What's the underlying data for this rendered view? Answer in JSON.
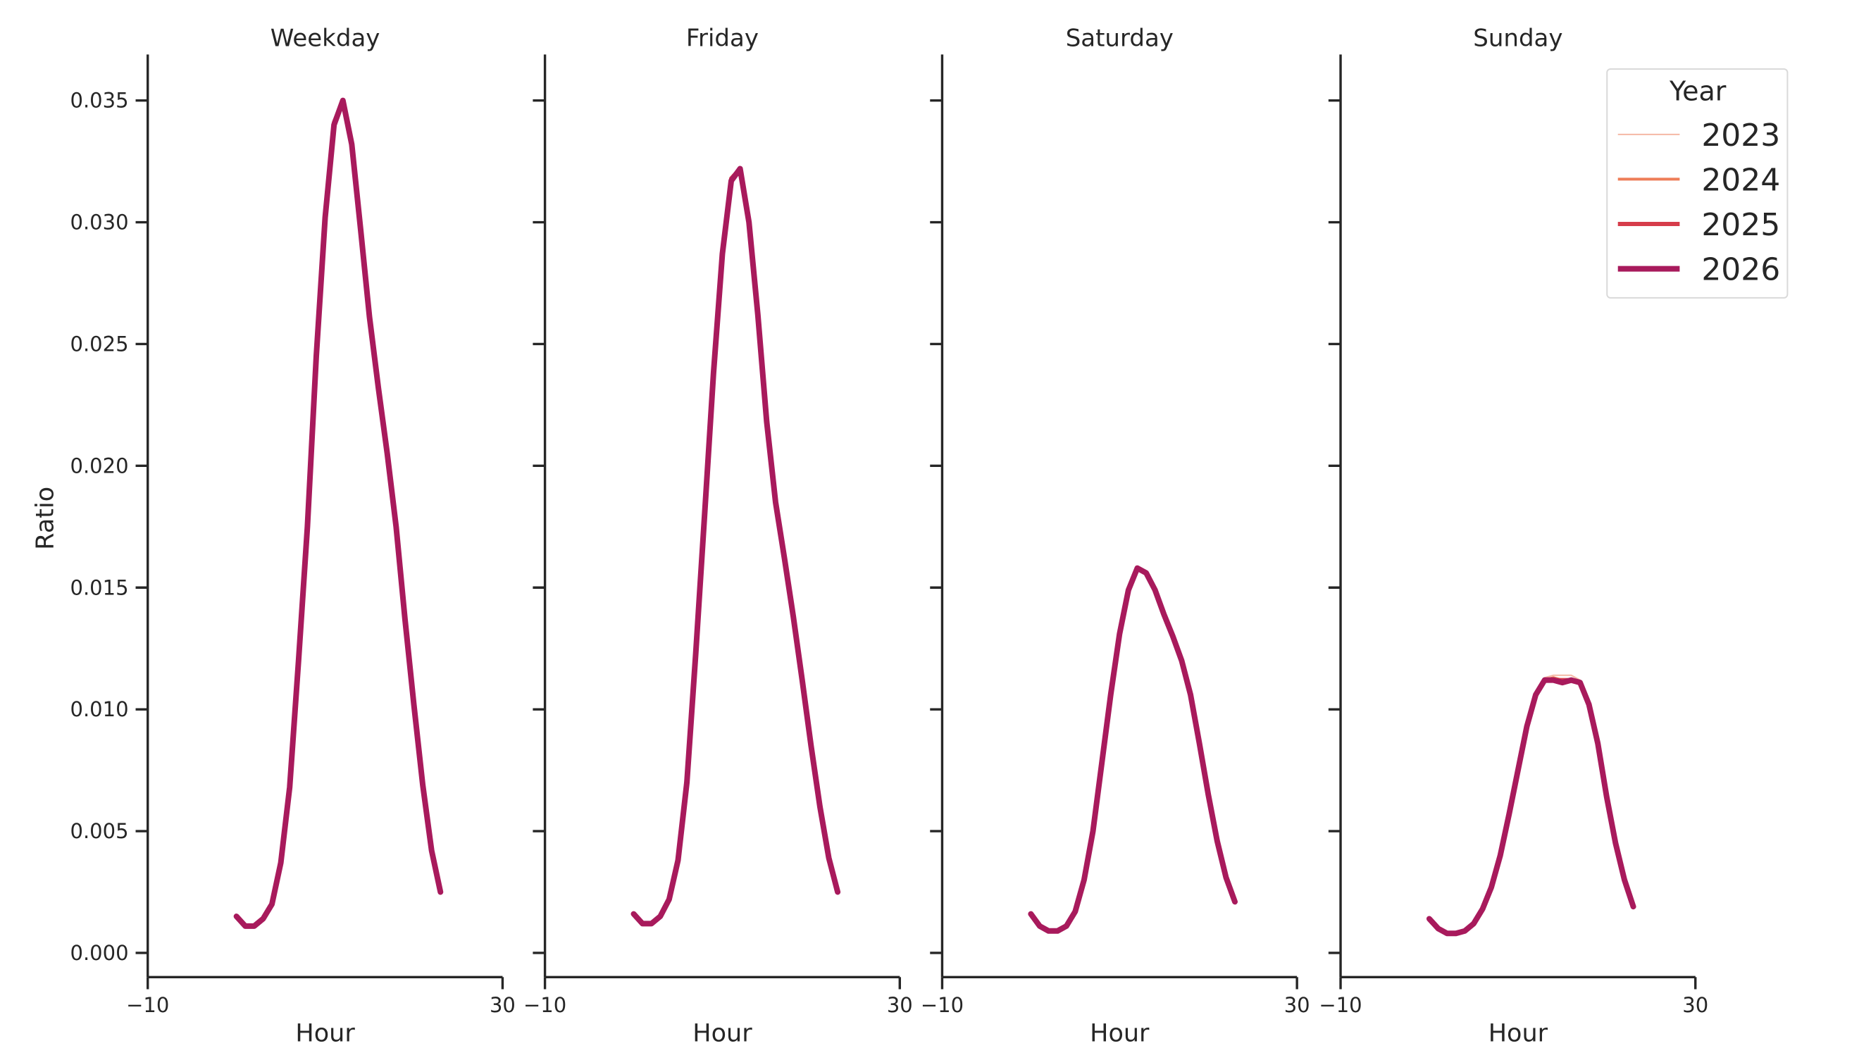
{
  "chart_data": {
    "type": "line",
    "facet_by": "day_type",
    "shared_y_axis": true,
    "ylabel": "Ratio",
    "xlabel": "Hour",
    "xlim": [
      -10,
      30
    ],
    "ylim": [
      -0.001,
      0.037
    ],
    "xticks": [
      -10,
      30
    ],
    "xtick_labels": [
      "−10",
      "30"
    ],
    "yticks": [
      0.0,
      0.005,
      0.01,
      0.015,
      0.02,
      0.025,
      0.03,
      0.035
    ],
    "ytick_labels": [
      "0.000",
      "0.005",
      "0.010",
      "0.015",
      "0.020",
      "0.025",
      "0.030",
      "0.035"
    ],
    "grid": false,
    "legend": {
      "title": "Year",
      "placement": "top-right",
      "entries": [
        {
          "label": "2023",
          "color": "#f5b8a5",
          "width": 2
        },
        {
          "label": "2024",
          "color": "#ee7d58",
          "width": 4
        },
        {
          "label": "2025",
          "color": "#d63c4a",
          "width": 6
        },
        {
          "label": "2026",
          "color": "#a81a5c",
          "width": 8
        }
      ]
    },
    "x": [
      0,
      1,
      2,
      3,
      4,
      5,
      6,
      7,
      8,
      9,
      10,
      11,
      12,
      13,
      14,
      15,
      16,
      17,
      18,
      19,
      20,
      21,
      22,
      23
    ],
    "panels": [
      {
        "title": "Weekday",
        "series": [
          {
            "name": "2023",
            "values": [
              0.0015,
              0.0011,
              0.0011,
              0.0014,
              0.002,
              0.0037,
              0.0068,
              0.012,
              0.0175,
              0.0245,
              0.0302,
              0.0341,
              0.035,
              0.0332,
              0.0297,
              0.0261,
              0.0232,
              0.0205,
              0.0175,
              0.0137,
              0.0102,
              0.0069,
              0.0042,
              0.0025
            ]
          },
          {
            "name": "2024",
            "values": [
              0.0015,
              0.0011,
              0.0011,
              0.0014,
              0.002,
              0.0037,
              0.0068,
              0.012,
              0.0175,
              0.0245,
              0.0302,
              0.0341,
              0.035,
              0.0332,
              0.0297,
              0.0261,
              0.0232,
              0.0205,
              0.0175,
              0.0137,
              0.0102,
              0.0069,
              0.0042,
              0.0025
            ]
          },
          {
            "name": "2025",
            "values": [
              0.0015,
              0.0011,
              0.0011,
              0.0014,
              0.002,
              0.0037,
              0.0068,
              0.012,
              0.0175,
              0.0245,
              0.0302,
              0.0341,
              0.035,
              0.0332,
              0.0297,
              0.0261,
              0.0232,
              0.0205,
              0.0175,
              0.0137,
              0.0102,
              0.0069,
              0.0042,
              0.0025
            ]
          },
          {
            "name": "2026",
            "values": [
              0.0015,
              0.0011,
              0.0011,
              0.0014,
              0.002,
              0.0037,
              0.0068,
              0.012,
              0.0175,
              0.0245,
              0.0302,
              0.034,
              0.035,
              0.0332,
              0.0297,
              0.0261,
              0.0232,
              0.0205,
              0.0175,
              0.0137,
              0.0102,
              0.0069,
              0.0042,
              0.0025
            ]
          }
        ]
      },
      {
        "title": "Friday",
        "series": [
          {
            "name": "2023",
            "values": [
              0.0016,
              0.0012,
              0.0012,
              0.0015,
              0.0022,
              0.0038,
              0.007,
              0.0123,
              0.018,
              0.0238,
              0.0287,
              0.0318,
              0.0322,
              0.03,
              0.0262,
              0.0218,
              0.0185,
              0.0162,
              0.0138,
              0.0112,
              0.0085,
              0.006,
              0.0039,
              0.0025
            ]
          },
          {
            "name": "2024",
            "values": [
              0.0016,
              0.0012,
              0.0012,
              0.0015,
              0.0022,
              0.0038,
              0.007,
              0.0123,
              0.018,
              0.0238,
              0.0287,
              0.0318,
              0.0322,
              0.03,
              0.0262,
              0.0218,
              0.0185,
              0.0162,
              0.0138,
              0.0112,
              0.0085,
              0.006,
              0.0039,
              0.0025
            ]
          },
          {
            "name": "2025",
            "values": [
              0.0016,
              0.0012,
              0.0012,
              0.0015,
              0.0022,
              0.0038,
              0.007,
              0.0123,
              0.018,
              0.0238,
              0.0287,
              0.0318,
              0.0322,
              0.03,
              0.0262,
              0.0218,
              0.0185,
              0.0162,
              0.0138,
              0.0112,
              0.0085,
              0.006,
              0.0039,
              0.0025
            ]
          },
          {
            "name": "2026",
            "values": [
              0.0016,
              0.0012,
              0.0012,
              0.0015,
              0.0022,
              0.0038,
              0.007,
              0.0123,
              0.018,
              0.0238,
              0.0287,
              0.0317,
              0.0322,
              0.03,
              0.0262,
              0.0218,
              0.0185,
              0.0162,
              0.0138,
              0.0112,
              0.0085,
              0.006,
              0.0039,
              0.0025
            ]
          }
        ]
      },
      {
        "title": "Saturday",
        "series": [
          {
            "name": "2023",
            "values": [
              0.0016,
              0.0011,
              0.0009,
              0.0009,
              0.0011,
              0.0017,
              0.003,
              0.005,
              0.0078,
              0.0106,
              0.0131,
              0.0149,
              0.0158,
              0.0156,
              0.0149,
              0.0139,
              0.013,
              0.012,
              0.0106,
              0.0086,
              0.0065,
              0.0046,
              0.0031,
              0.0021
            ]
          },
          {
            "name": "2024",
            "values": [
              0.0016,
              0.0011,
              0.0009,
              0.0009,
              0.0011,
              0.0017,
              0.003,
              0.005,
              0.0078,
              0.0106,
              0.0131,
              0.0149,
              0.0158,
              0.0156,
              0.0149,
              0.0139,
              0.013,
              0.012,
              0.0106,
              0.0086,
              0.0065,
              0.0046,
              0.0031,
              0.0021
            ]
          },
          {
            "name": "2025",
            "values": [
              0.0016,
              0.0011,
              0.0009,
              0.0009,
              0.0011,
              0.0017,
              0.003,
              0.005,
              0.0078,
              0.0106,
              0.0131,
              0.0149,
              0.0158,
              0.0156,
              0.0149,
              0.0139,
              0.013,
              0.012,
              0.0106,
              0.0086,
              0.0065,
              0.0046,
              0.0031,
              0.0021
            ]
          },
          {
            "name": "2026",
            "values": [
              0.0016,
              0.0011,
              0.0009,
              0.0009,
              0.0011,
              0.0017,
              0.003,
              0.005,
              0.0078,
              0.0106,
              0.0131,
              0.0149,
              0.0158,
              0.0156,
              0.0149,
              0.0139,
              0.013,
              0.012,
              0.0106,
              0.0086,
              0.0065,
              0.0046,
              0.0031,
              0.0021
            ]
          }
        ]
      },
      {
        "title": "Sunday",
        "series": [
          {
            "name": "2023",
            "values": [
              0.0014,
              0.001,
              0.0008,
              0.0008,
              0.0009,
              0.0012,
              0.0018,
              0.0027,
              0.004,
              0.0057,
              0.0075,
              0.0093,
              0.0106,
              0.0113,
              0.0114,
              0.0114,
              0.0114,
              0.0112,
              0.0103,
              0.0086,
              0.0064,
              0.0045,
              0.003,
              0.0019
            ]
          },
          {
            "name": "2024",
            "values": [
              0.0014,
              0.001,
              0.0008,
              0.0008,
              0.0009,
              0.0012,
              0.0018,
              0.0027,
              0.004,
              0.0057,
              0.0075,
              0.0093,
              0.0106,
              0.0112,
              0.0113,
              0.0112,
              0.0112,
              0.0111,
              0.0102,
              0.0086,
              0.0064,
              0.0045,
              0.003,
              0.0019
            ]
          },
          {
            "name": "2025",
            "values": [
              0.0014,
              0.001,
              0.0008,
              0.0008,
              0.0009,
              0.0012,
              0.0018,
              0.0027,
              0.004,
              0.0057,
              0.0075,
              0.0093,
              0.0106,
              0.0112,
              0.0112,
              0.0112,
              0.0112,
              0.0111,
              0.0102,
              0.0086,
              0.0064,
              0.0045,
              0.003,
              0.0019
            ]
          },
          {
            "name": "2026",
            "values": [
              0.0014,
              0.001,
              0.0008,
              0.0008,
              0.0009,
              0.0012,
              0.0018,
              0.0027,
              0.004,
              0.0057,
              0.0075,
              0.0093,
              0.0106,
              0.0112,
              0.0112,
              0.0111,
              0.0112,
              0.0111,
              0.0102,
              0.0086,
              0.0064,
              0.0045,
              0.003,
              0.0019
            ]
          }
        ]
      }
    ]
  }
}
